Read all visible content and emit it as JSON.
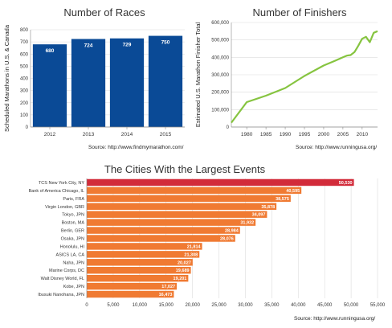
{
  "chart_data": [
    {
      "type": "bar",
      "title": "Number of Races",
      "ylabel": "Scheduled Marathons in U.S. & Canada",
      "xlabel": "",
      "categories": [
        "2012",
        "2013",
        "2014",
        "2015"
      ],
      "values": [
        680,
        724,
        729,
        750
      ],
      "data_labels": [
        "680",
        "724",
        "729",
        "750"
      ],
      "ylim": [
        0,
        800
      ],
      "yticks": [
        0,
        100,
        200,
        300,
        400,
        500,
        600,
        700,
        800
      ],
      "grid": true,
      "color": "#0a4a96",
      "source": "Source: http://www.findmymarathon.com/"
    },
    {
      "type": "line",
      "title": "Number of Finishers",
      "ylabel": "Estimated U.S. Marathon Finisher Total",
      "xlabel": "",
      "xlim": [
        1976,
        2014
      ],
      "xticks": [
        1980,
        1985,
        1990,
        1995,
        2000,
        2005,
        2010
      ],
      "ylim": [
        0,
        600000
      ],
      "yticks": [
        0,
        100000,
        200000,
        300000,
        400000,
        500000,
        600000
      ],
      "ytick_labels": [
        "0",
        "100,000",
        "200,000",
        "300,000",
        "400,000",
        "500,000",
        "600,000"
      ],
      "x": [
        1976,
        1980,
        1985,
        1990,
        1995,
        2000,
        2003,
        2005,
        2006,
        2007,
        2008,
        2009,
        2010,
        2011,
        2012,
        2013,
        2014
      ],
      "y": [
        25000,
        143000,
        180000,
        224000,
        293000,
        353000,
        381000,
        400000,
        410000,
        413000,
        430000,
        467000,
        507000,
        518000,
        487000,
        541000,
        550000
      ],
      "grid": true,
      "color": "#86c440",
      "source": "Source: http://www.runningusa.org/"
    },
    {
      "type": "bar",
      "orientation": "horizontal",
      "title": "The Cities With the Largest Events",
      "xlabel": "",
      "ylabel": "",
      "categories": [
        "TCS New York City, NY",
        "Bank of America Chicago, IL",
        "Paris, FRA",
        "Virgin London, GBR",
        "Tokyo, JPN",
        "Boston, MA",
        "Berlin, GER",
        "Osaka, JPN",
        "Honolulu, HI",
        "ASICS LA, CA",
        "Naha, JPN",
        "Marine Corps, DC",
        "Walt Disney World, FL",
        "Kobe, JPN",
        "Ibusuki Nanohana, JPN"
      ],
      "values": [
        50530,
        40595,
        38575,
        35878,
        34097,
        31932,
        28984,
        28076,
        21814,
        21308,
        20027,
        19689,
        19201,
        17027,
        16473
      ],
      "data_labels": [
        "50,530",
        "40,595",
        "38,575",
        "35,878",
        "34,097",
        "31,932",
        "28,984",
        "28,076",
        "21,814",
        "21,308",
        "20,027",
        "19,689",
        "19,201",
        "17,027",
        "16,473"
      ],
      "xlim": [
        0,
        55000
      ],
      "xticks": [
        0,
        5000,
        10000,
        15000,
        20000,
        25000,
        30000,
        35000,
        40000,
        45000,
        50000,
        55000
      ],
      "xtick_labels": [
        "0",
        "5,000",
        "10,000",
        "15,000",
        "20,000",
        "25,000",
        "30,000",
        "35,000",
        "40,000",
        "45,000",
        "50,000",
        "55,000"
      ],
      "grid": true,
      "colors": {
        "highlight": "#d22b3a",
        "default": "#f07a32"
      },
      "source": "Source: http://www.runningusa.org/"
    }
  ]
}
